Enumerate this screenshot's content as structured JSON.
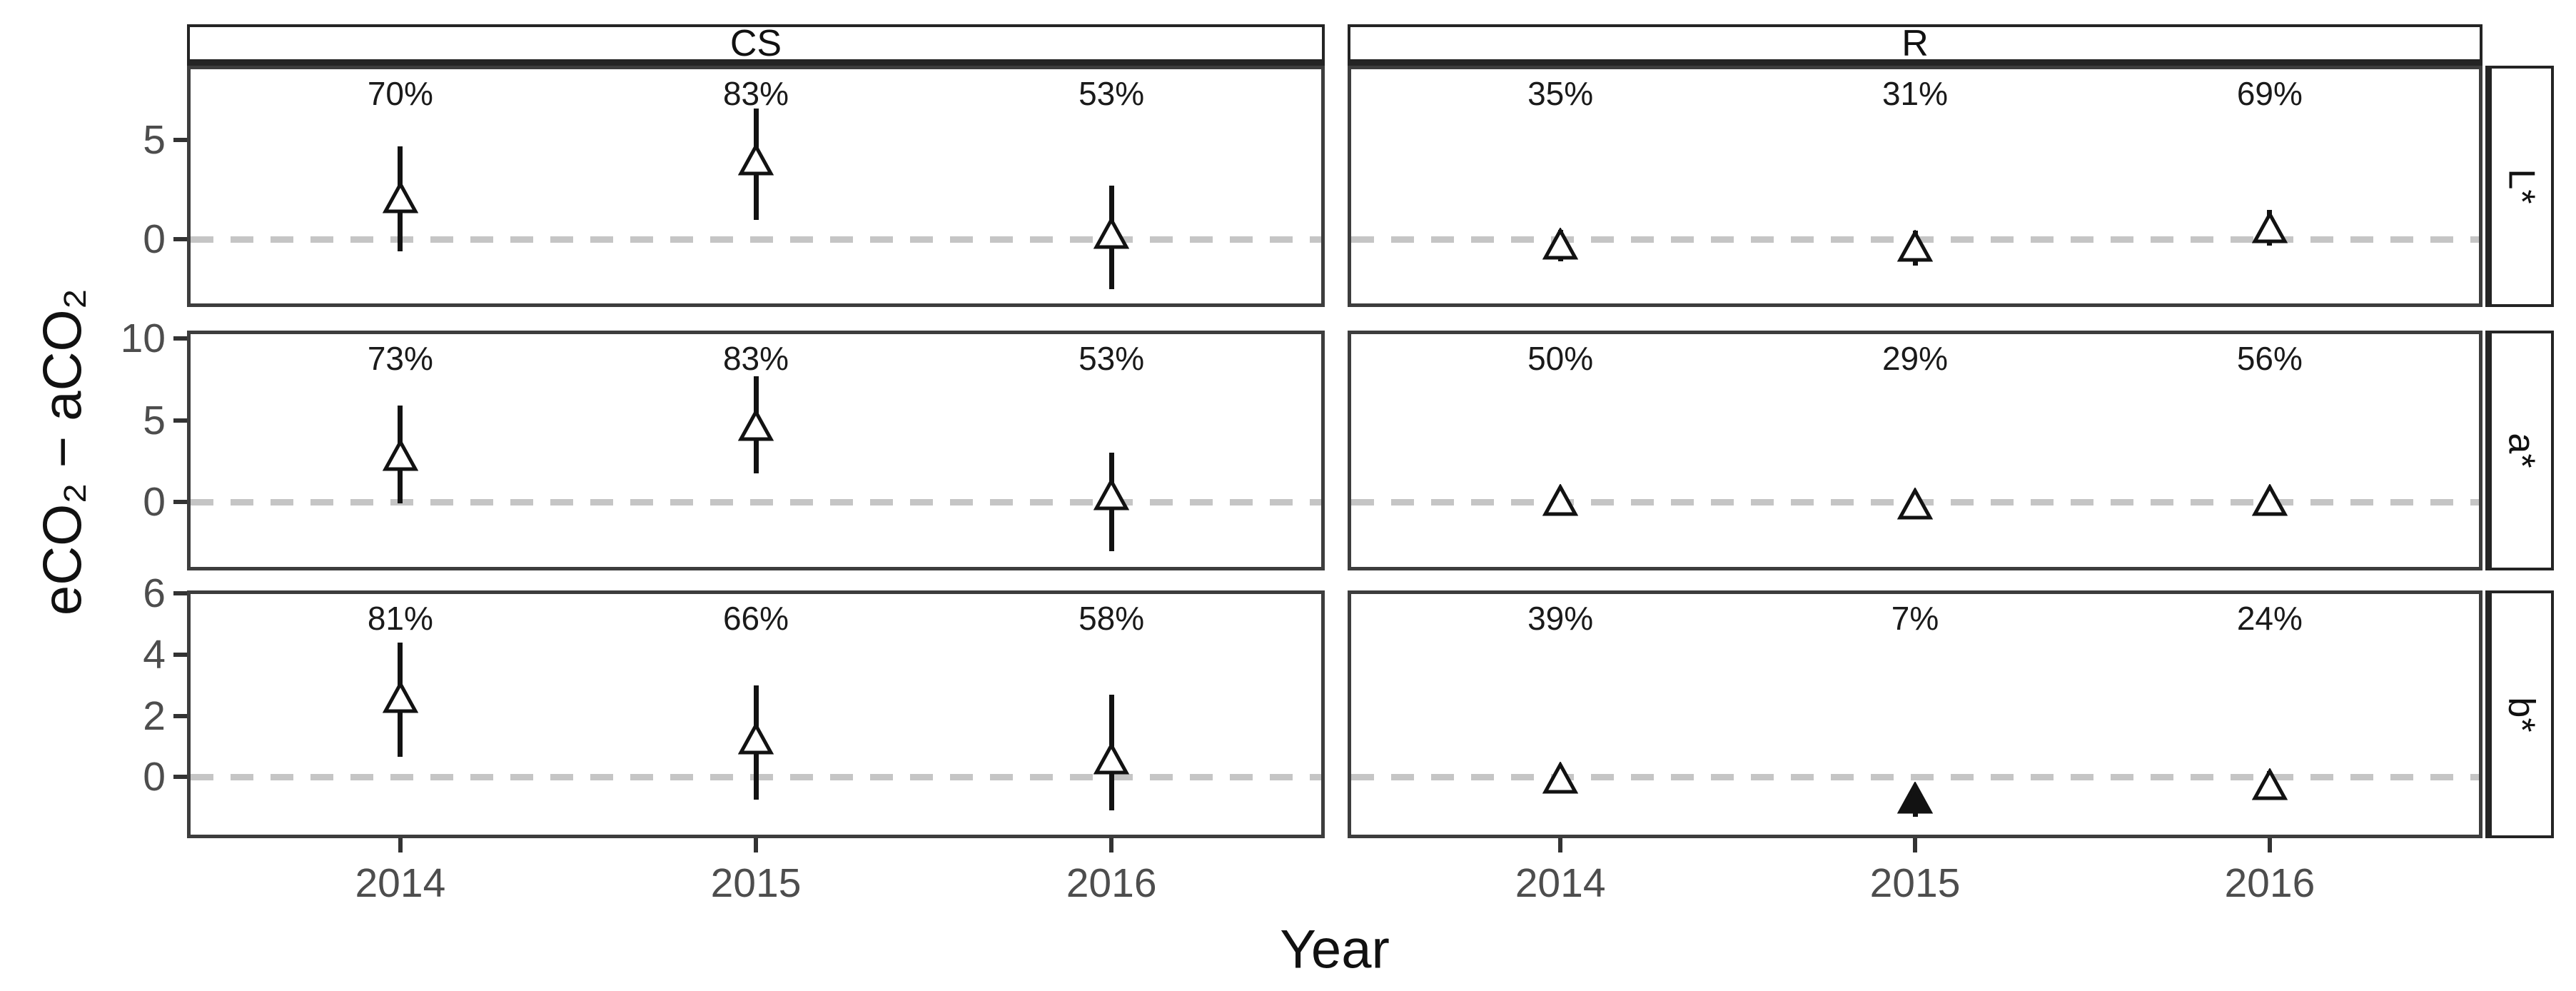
{
  "figure": {
    "ylabel": "eCO₂ − aCO₂",
    "xlabel": "Year"
  },
  "colors": {
    "background": "#ffffff",
    "panel_border": "#3d3d3d",
    "strip_border": "#242424",
    "zero_line": "#c5c5c5",
    "error_bar": "#121212",
    "marker_stroke": "#121212",
    "marker_fill_open": "#ffffff",
    "marker_fill_solid": "#121212",
    "tick_label": "#4d4d4d",
    "title_text": "#111111"
  },
  "chart_data": {
    "type": "scatter",
    "marker": "triangle-up-with-error-bars",
    "x_categories": [
      "2014",
      "2015",
      "2016"
    ],
    "facet_columns": [
      "CS",
      "R"
    ],
    "facet_rows": [
      "L*",
      "a*",
      "b*"
    ],
    "zero_reference_line": 0,
    "grid": "off",
    "legend": "none",
    "panels": [
      {
        "col": "CS",
        "row": "L*",
        "ylim": [
          -3.4,
          8.75
        ],
        "yticks": [
          5,
          0
        ],
        "points": [
          {
            "x": "2014",
            "y": 2.1,
            "lo": -0.6,
            "hi": 4.7,
            "label": "70%",
            "filled": false
          },
          {
            "x": "2015",
            "y": 4.0,
            "lo": 1.0,
            "hi": 6.6,
            "label": "83%",
            "filled": false
          },
          {
            "x": "2016",
            "y": 0.3,
            "lo": -2.5,
            "hi": 2.7,
            "label": "53%",
            "filled": false
          }
        ]
      },
      {
        "col": "R",
        "row": "L*",
        "ylim": [
          -3.4,
          8.75
        ],
        "yticks": [],
        "points": [
          {
            "x": "2014",
            "y": -0.25,
            "lo": -1.1,
            "hi": 0.5,
            "label": "35%",
            "filled": false
          },
          {
            "x": "2015",
            "y": -0.35,
            "lo": -1.3,
            "hi": 0.45,
            "label": "31%",
            "filled": false
          },
          {
            "x": "2016",
            "y": 0.6,
            "lo": -0.3,
            "hi": 1.5,
            "label": "69%",
            "filled": false
          }
        ]
      },
      {
        "col": "CS",
        "row": "a*",
        "ylim": [
          -4.2,
          10.5
        ],
        "yticks": [
          10,
          5,
          0
        ],
        "points": [
          {
            "x": "2014",
            "y": 2.85,
            "lo": -0.1,
            "hi": 5.9,
            "label": "73%",
            "filled": false
          },
          {
            "x": "2015",
            "y": 4.7,
            "lo": 1.75,
            "hi": 7.7,
            "label": "83%",
            "filled": false
          },
          {
            "x": "2016",
            "y": 0.45,
            "lo": -3.0,
            "hi": 3.0,
            "label": "53%",
            "filled": false
          }
        ]
      },
      {
        "col": "R",
        "row": "a*",
        "ylim": [
          -4.2,
          10.5
        ],
        "yticks": [],
        "points": [
          {
            "x": "2014",
            "y": 0.1,
            "lo": -0.4,
            "hi": 0.6,
            "label": "50%",
            "filled": false
          },
          {
            "x": "2015",
            "y": -0.15,
            "lo": -0.65,
            "hi": 0.35,
            "label": "29%",
            "filled": false
          },
          {
            "x": "2016",
            "y": 0.1,
            "lo": -0.4,
            "hi": 0.6,
            "label": "56%",
            "filled": false
          }
        ]
      },
      {
        "col": "CS",
        "row": "b*",
        "ylim": [
          -2.0,
          6.1
        ],
        "yticks": [
          6,
          4,
          2,
          0
        ],
        "points": [
          {
            "x": "2014",
            "y": 2.6,
            "lo": 0.65,
            "hi": 4.4,
            "label": "81%",
            "filled": false
          },
          {
            "x": "2015",
            "y": 1.25,
            "lo": -0.75,
            "hi": 3.0,
            "label": "66%",
            "filled": false
          },
          {
            "x": "2016",
            "y": 0.6,
            "lo": -1.1,
            "hi": 2.7,
            "label": "58%",
            "filled": false
          }
        ]
      },
      {
        "col": "R",
        "row": "b*",
        "ylim": [
          -2.0,
          6.1
        ],
        "yticks": [],
        "points": [
          {
            "x": "2014",
            "y": -0.05,
            "lo": -0.5,
            "hi": 0.35,
            "label": "39%",
            "filled": false
          },
          {
            "x": "2015",
            "y": -0.7,
            "lo": -1.3,
            "hi": -0.3,
            "label": "7%",
            "filled": true
          },
          {
            "x": "2016",
            "y": -0.25,
            "lo": -0.75,
            "hi": 0.2,
            "label": "24%",
            "filled": false
          }
        ]
      }
    ]
  }
}
